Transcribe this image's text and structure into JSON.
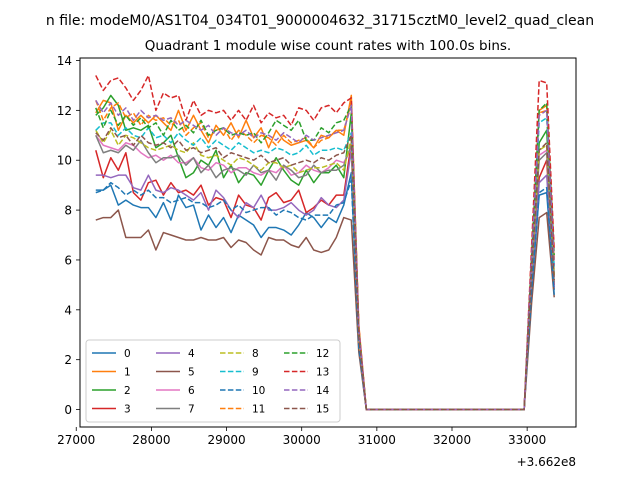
{
  "figure": {
    "suptitle": "n file: modeM0/AS1T04_034T01_9000004632_31715cztM0_level2_quad_clean"
  },
  "chart_data": {
    "type": "line",
    "title": "Quadrant 1 module wise count rates with 100.0s bins.",
    "xlabel": "",
    "ylabel": "",
    "offset_text": "+3.662e8",
    "xlim": [
      27050,
      33650
    ],
    "ylim": [
      -0.7,
      14.1
    ],
    "xticks": [
      27000,
      28000,
      29000,
      30000,
      31000,
      32000,
      33000
    ],
    "xtick_labels": [
      "27000",
      "28000",
      "29000",
      "30000",
      "31000",
      "32000",
      "33000"
    ],
    "yticks": [
      0,
      2,
      4,
      6,
      8,
      10,
      12,
      14
    ],
    "ytick_labels": [
      "0",
      "2",
      "4",
      "6",
      "8",
      "10",
      "12",
      "14"
    ],
    "grid": false,
    "legend_position": "lower-left",
    "legend_columns": 4,
    "x": [
      27260,
      27360,
      27460,
      27560,
      27660,
      27760,
      27860,
      27960,
      28060,
      28160,
      28260,
      28360,
      28460,
      28560,
      28660,
      28760,
      28860,
      28960,
      29060,
      29160,
      29260,
      29360,
      29460,
      29560,
      29660,
      29760,
      29860,
      29960,
      30060,
      30160,
      30260,
      30360,
      30460,
      30560,
      30660,
      30760,
      30860,
      32960,
      33060,
      33160,
      33260,
      33360
    ],
    "series": [
      {
        "name": "0",
        "color": "#1f77b4",
        "dash": "solid",
        "values": [
          8.8,
          8.8,
          9.0,
          8.2,
          8.4,
          8.2,
          8.1,
          8.1,
          7.7,
          8.3,
          7.6,
          8.6,
          8.1,
          8.2,
          7.2,
          7.8,
          7.3,
          7.7,
          7.1,
          7.8,
          7.6,
          7.4,
          6.9,
          7.3,
          7.3,
          7.2,
          7.0,
          7.4,
          7.9,
          7.7,
          7.3,
          7.7,
          7.5,
          8.2,
          9.5,
          2.5,
          0.0,
          0.0,
          4.9,
          8.6,
          8.7,
          4.8
        ]
      },
      {
        "name": "1",
        "color": "#ff7f0e",
        "dash": "solid",
        "values": [
          11.9,
          12.4,
          12.3,
          11.2,
          11.8,
          11.5,
          11.8,
          11.5,
          11.8,
          11.5,
          11.2,
          12.0,
          11.2,
          11.8,
          11.2,
          10.7,
          11.4,
          11.0,
          11.5,
          10.9,
          11.6,
          10.9,
          11.3,
          10.5,
          11.2,
          10.8,
          10.6,
          10.7,
          10.8,
          10.5,
          11.0,
          10.9,
          11.2,
          11.0,
          12.6,
          3.4,
          0.0,
          0.0,
          6.0,
          12.0,
          12.2,
          6.0
        ]
      },
      {
        "name": "2",
        "color": "#2ca02c",
        "dash": "solid",
        "values": [
          11.8,
          12.1,
          12.6,
          12.2,
          11.2,
          11.3,
          11.2,
          11.4,
          10.5,
          10.7,
          11.0,
          10.1,
          9.3,
          9.5,
          10.0,
          9.8,
          10.4,
          9.3,
          9.8,
          9.1,
          9.5,
          9.4,
          9.0,
          9.6,
          10.1,
          9.6,
          9.2,
          9.0,
          9.6,
          9.1,
          9.5,
          9.5,
          9.8,
          9.3,
          11.9,
          3.0,
          0.0,
          0.0,
          5.8,
          10.7,
          11.2,
          5.4
        ]
      },
      {
        "name": "3",
        "color": "#d62728",
        "dash": "solid",
        "values": [
          10.4,
          9.3,
          10.1,
          9.6,
          10.3,
          8.7,
          8.4,
          9.1,
          9.2,
          8.6,
          9.1,
          8.7,
          8.8,
          8.6,
          9.0,
          8.2,
          8.5,
          8.4,
          7.7,
          8.6,
          8.2,
          8.1,
          7.6,
          8.5,
          8.7,
          8.3,
          8.4,
          8.8,
          7.9,
          8.1,
          8.4,
          8.2,
          8.6,
          8.6,
          10.7,
          2.6,
          0.0,
          0.0,
          5.2,
          9.3,
          10.0,
          5.0
        ]
      },
      {
        "name": "4",
        "color": "#9467bd",
        "dash": "solid",
        "values": [
          9.4,
          9.4,
          9.3,
          9.4,
          9.4,
          8.9,
          8.8,
          9.4,
          8.8,
          8.7,
          8.9,
          8.8,
          8.6,
          8.4,
          8.7,
          8.0,
          8.8,
          8.5,
          8.0,
          7.7,
          8.3,
          8.1,
          8.6,
          8.0,
          8.0,
          8.1,
          8.3,
          8.0,
          7.8,
          8.0,
          8.5,
          8.2,
          8.1,
          8.4,
          10.4,
          2.6,
          0.0,
          0.0,
          5.1,
          9.1,
          9.4,
          4.9
        ]
      },
      {
        "name": "5",
        "color": "#8c564b",
        "dash": "solid",
        "values": [
          7.6,
          7.7,
          7.7,
          8.0,
          6.9,
          6.9,
          6.9,
          7.2,
          6.4,
          7.1,
          7.0,
          6.9,
          6.8,
          6.8,
          6.9,
          6.8,
          6.8,
          6.9,
          6.5,
          6.8,
          6.7,
          6.4,
          6.2,
          6.9,
          6.8,
          6.8,
          6.6,
          6.5,
          6.9,
          6.4,
          6.3,
          6.4,
          6.9,
          7.7,
          7.6,
          2.3,
          0.0,
          0.0,
          4.3,
          7.7,
          7.9,
          4.5
        ]
      },
      {
        "name": "6",
        "color": "#e377c2",
        "dash": "solid",
        "values": [
          11.0,
          10.6,
          10.5,
          10.4,
          10.7,
          10.6,
          10.3,
          10.1,
          10.2,
          10.0,
          10.2,
          9.9,
          9.9,
          10.1,
          9.7,
          9.6,
          9.9,
          9.8,
          9.5,
          9.7,
          9.7,
          9.5,
          9.4,
          9.6,
          9.5,
          9.8,
          9.4,
          9.5,
          9.8,
          9.6,
          9.5,
          9.7,
          10.0,
          9.9,
          10.5,
          2.8,
          0.0,
          0.0,
          5.6,
          10.2,
          10.4,
          5.3
        ]
      },
      {
        "name": "7",
        "color": "#7f7f7f",
        "dash": "solid",
        "values": [
          11.0,
          10.3,
          10.4,
          10.3,
          10.6,
          10.4,
          10.8,
          10.3,
          9.9,
          10.1,
          10.1,
          10.2,
          9.8,
          10.1,
          9.5,
          9.8,
          9.3,
          9.6,
          9.7,
          9.6,
          9.4,
          9.8,
          9.5,
          9.6,
          9.2,
          9.8,
          9.6,
          9.3,
          9.4,
          9.8,
          9.5,
          9.6,
          9.6,
          9.8,
          10.6,
          2.9,
          0.0,
          0.0,
          5.5,
          10.0,
          10.3,
          5.1
        ]
      },
      {
        "name": "8",
        "color": "#bcbd22",
        "dash": "dashed",
        "values": [
          11.2,
          10.7,
          11.2,
          10.6,
          11.0,
          10.9,
          10.7,
          10.5,
          10.4,
          10.5,
          10.6,
          10.4,
          10.3,
          10.7,
          10.2,
          10.1,
          10.2,
          10.0,
          9.8,
          10.1,
          10.0,
          9.8,
          9.6,
          9.9,
          9.9,
          9.7,
          9.8,
          9.5,
          9.6,
          9.7,
          9.7,
          9.8,
          9.9,
          9.6,
          10.9,
          2.9,
          0.0,
          0.0,
          5.7,
          10.4,
          10.6,
          5.4
        ]
      },
      {
        "name": "9",
        "color": "#17becf",
        "dash": "dashed",
        "values": [
          11.2,
          11.5,
          11.5,
          11.0,
          11.3,
          11.0,
          10.9,
          11.3,
          10.9,
          11.0,
          10.7,
          11.1,
          10.8,
          10.6,
          10.9,
          10.5,
          10.8,
          10.6,
          10.4,
          10.7,
          10.5,
          10.3,
          10.4,
          10.3,
          10.5,
          10.4,
          10.2,
          10.3,
          10.6,
          10.2,
          10.4,
          10.4,
          10.5,
          10.4,
          11.1,
          3.0,
          0.0,
          0.0,
          5.9,
          11.5,
          11.7,
          5.7
        ]
      },
      {
        "name": "10",
        "color": "#1f77b4",
        "dash": "dashed",
        "values": [
          8.7,
          8.8,
          9.1,
          8.9,
          8.6,
          8.8,
          8.6,
          8.8,
          8.5,
          8.5,
          8.3,
          8.4,
          8.5,
          8.3,
          8.3,
          8.1,
          8.2,
          8.4,
          8.0,
          8.2,
          7.9,
          8.0,
          8.1,
          8.1,
          7.8,
          8.0,
          7.9,
          7.7,
          7.6,
          7.8,
          7.8,
          7.8,
          8.2,
          8.3,
          9.2,
          2.5,
          0.0,
          0.0,
          4.8,
          8.7,
          8.9,
          4.6
        ]
      },
      {
        "name": "11",
        "color": "#ff7f0e",
        "dash": "dashed",
        "values": [
          12.4,
          11.6,
          12.1,
          12.3,
          11.7,
          11.9,
          11.4,
          11.8,
          11.6,
          11.7,
          11.4,
          11.6,
          11.0,
          11.3,
          11.5,
          10.9,
          11.2,
          11.3,
          10.8,
          11.2,
          11.0,
          10.7,
          11.0,
          10.9,
          10.6,
          11.0,
          10.7,
          10.8,
          10.9,
          10.5,
          10.8,
          10.9,
          11.2,
          11.2,
          12.3,
          3.3,
          0.0,
          0.0,
          6.3,
          11.9,
          12.0,
          6.0
        ]
      },
      {
        "name": "12",
        "color": "#2ca02c",
        "dash": "dashed",
        "values": [
          12.1,
          11.3,
          12.0,
          11.4,
          11.8,
          11.4,
          11.7,
          11.3,
          11.5,
          11.0,
          11.6,
          11.2,
          11.4,
          11.1,
          11.6,
          11.0,
          11.2,
          11.3,
          11.0,
          11.1,
          11.0,
          11.1,
          10.7,
          11.1,
          11.6,
          11.4,
          11.2,
          11.6,
          10.8,
          10.8,
          11.3,
          11.1,
          11.5,
          11.6,
          12.2,
          3.2,
          0.0,
          0.0,
          6.2,
          12.0,
          12.3,
          6.2
        ]
      },
      {
        "name": "13",
        "color": "#d62728",
        "dash": "dashed",
        "values": [
          13.4,
          12.8,
          13.2,
          13.3,
          12.9,
          12.4,
          12.8,
          13.4,
          12.0,
          12.7,
          12.5,
          12.6,
          11.6,
          12.4,
          11.8,
          12.0,
          11.9,
          12.0,
          11.6,
          12.0,
          11.6,
          12.2,
          11.5,
          11.9,
          11.7,
          11.8,
          11.4,
          12.1,
          12.0,
          11.6,
          12.1,
          12.2,
          11.9,
          12.3,
          12.5,
          3.3,
          0.0,
          0.0,
          6.6,
          13.2,
          13.1,
          6.4
        ]
      },
      {
        "name": "14",
        "color": "#9467bd",
        "dash": "dashed",
        "values": [
          12.4,
          11.9,
          12.3,
          11.8,
          12.1,
          11.6,
          12.0,
          11.7,
          11.8,
          11.6,
          11.7,
          11.4,
          11.6,
          11.4,
          11.2,
          11.4,
          11.0,
          11.3,
          11.1,
          11.0,
          11.2,
          10.9,
          11.1,
          11.0,
          10.8,
          11.1,
          10.9,
          10.7,
          11.0,
          10.8,
          10.9,
          11.0,
          11.1,
          11.2,
          12.2,
          3.2,
          0.0,
          0.0,
          6.1,
          11.8,
          12.0,
          5.8
        ]
      },
      {
        "name": "15",
        "color": "#8c564b",
        "dash": "dashed",
        "values": [
          11.1,
          10.8,
          11.3,
          10.9,
          11.0,
          10.6,
          11.0,
          10.7,
          10.6,
          10.7,
          10.5,
          10.8,
          10.4,
          10.5,
          10.3,
          10.4,
          10.5,
          10.1,
          10.3,
          10.2,
          10.1,
          10.0,
          10.2,
          9.9,
          10.0,
          10.1,
          9.8,
          9.9,
          10.0,
          9.9,
          10.1,
          10.0,
          10.2,
          10.3,
          11.0,
          2.9,
          0.0,
          0.0,
          5.6,
          10.4,
          10.7,
          5.2
        ]
      }
    ]
  }
}
